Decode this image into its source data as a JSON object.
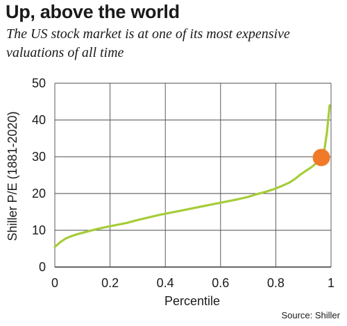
{
  "header": {
    "title": "Up, above the world",
    "subtitle": "The US stock market is at one of its most expensive valuations of all time"
  },
  "source": "Source: Shiller",
  "chart_data": {
    "type": "line",
    "xlabel": "Percentile",
    "ylabel": "Shiller P/E (1881-2020)",
    "xlim": [
      0,
      1
    ],
    "ylim": [
      0,
      50
    ],
    "x_ticks": [
      "0",
      "0.2",
      "0.4",
      "0.6",
      "0.8",
      "1"
    ],
    "y_ticks": [
      "0",
      "10",
      "20",
      "30",
      "40",
      "50"
    ],
    "grid": true,
    "series": [
      {
        "color": "#a6cc38",
        "x": [
          0.0,
          0.02,
          0.04,
          0.06,
          0.08,
          0.1,
          0.12,
          0.15,
          0.18,
          0.22,
          0.26,
          0.3,
          0.34,
          0.38,
          0.42,
          0.46,
          0.5,
          0.54,
          0.58,
          0.62,
          0.66,
          0.7,
          0.73,
          0.76,
          0.79,
          0.82,
          0.85,
          0.87,
          0.89,
          0.91,
          0.93,
          0.95,
          0.965,
          0.975,
          0.985,
          0.995
        ],
        "y": [
          5.5,
          6.8,
          7.8,
          8.4,
          8.9,
          9.3,
          9.7,
          10.3,
          10.8,
          11.4,
          12.0,
          12.8,
          13.5,
          14.2,
          14.8,
          15.4,
          16.0,
          16.6,
          17.2,
          17.8,
          18.4,
          19.1,
          19.8,
          20.4,
          21.1,
          22.0,
          23.0,
          24.0,
          25.2,
          26.2,
          27.2,
          28.5,
          29.6,
          31.5,
          36.5,
          44.0
        ]
      }
    ],
    "highlight": {
      "x": 0.965,
      "y": 29.8,
      "color": "#f07a2a"
    }
  }
}
